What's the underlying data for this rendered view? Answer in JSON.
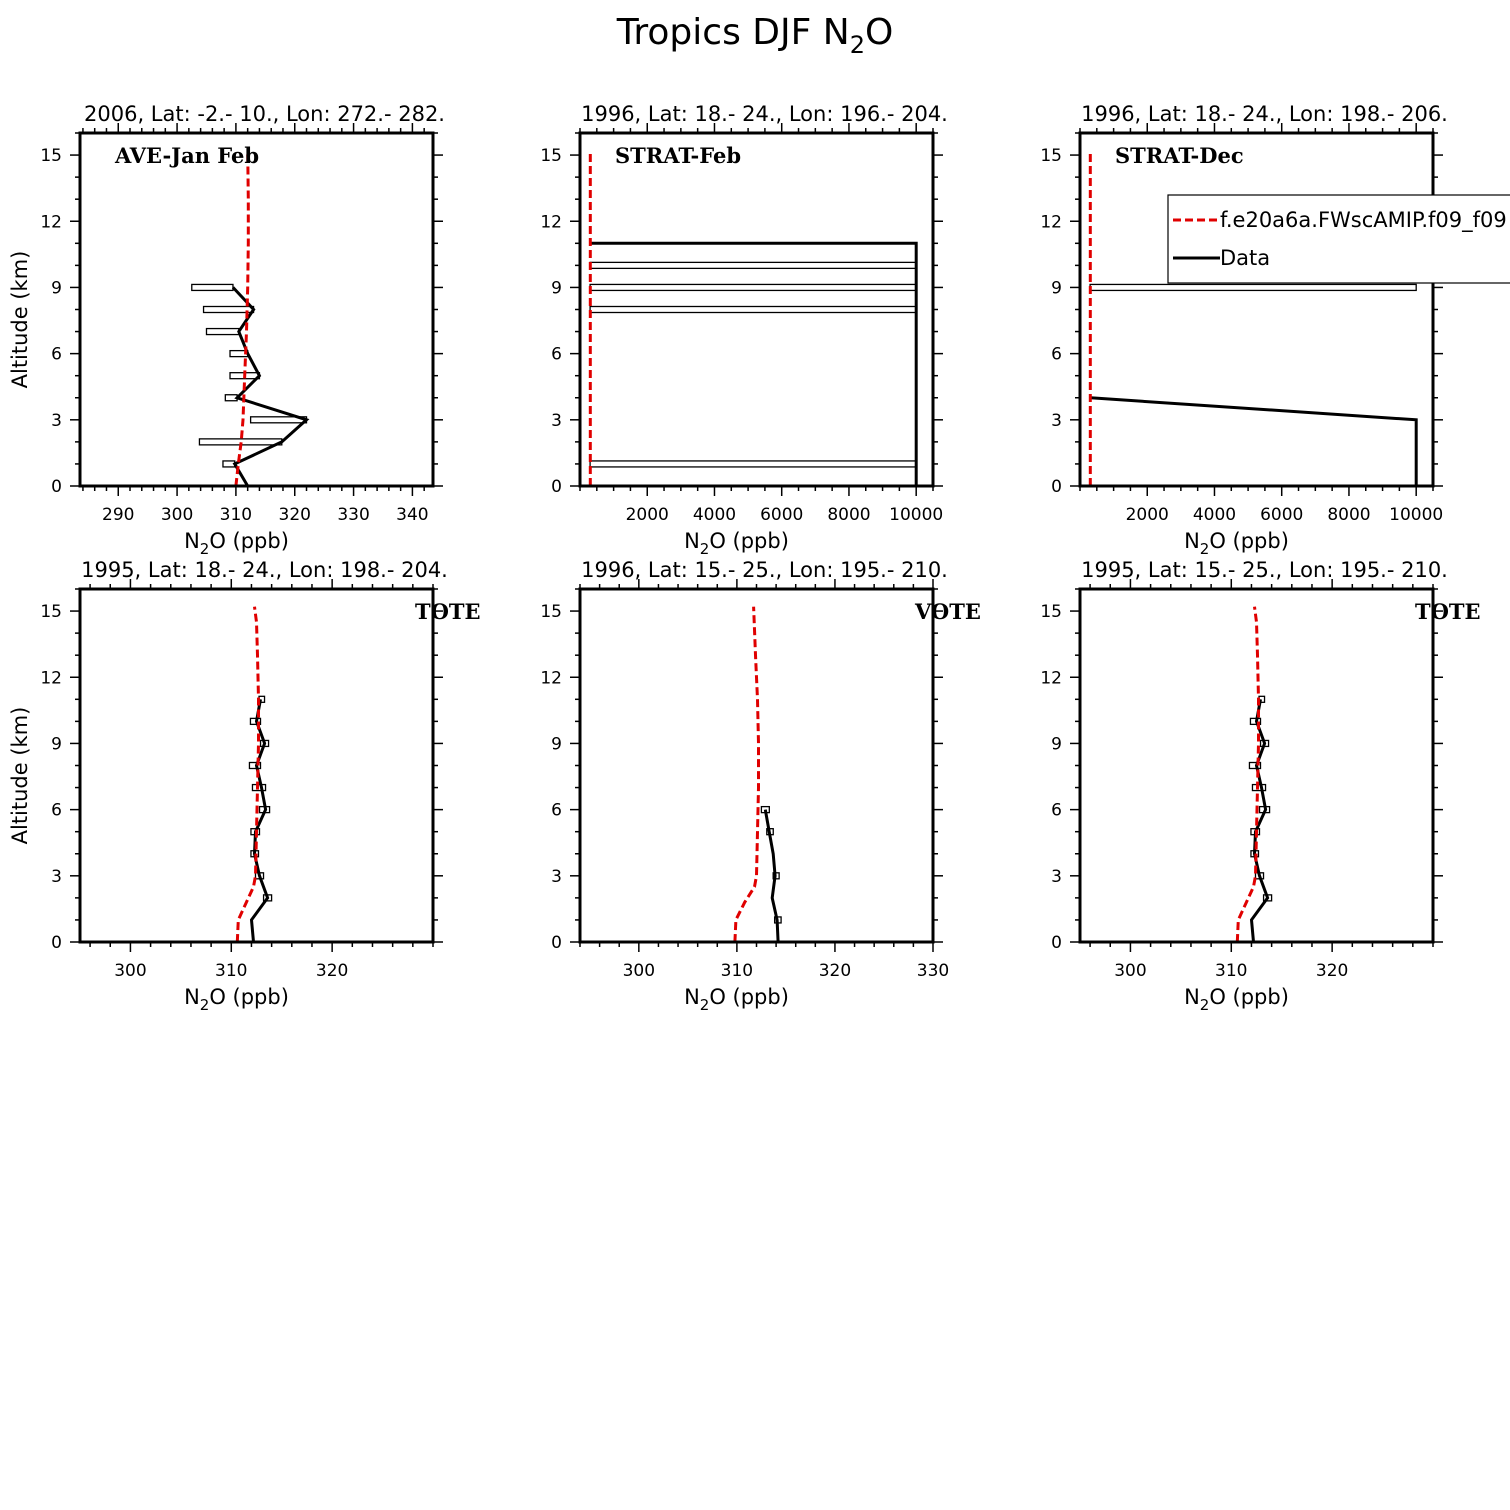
{
  "figure": {
    "title": "Tropics DJF N",
    "title_sub": "2",
    "title_tail": "O"
  },
  "colors": {
    "model": "#e00000",
    "data": "#000000"
  },
  "legend": {
    "model_label": "f.e20a6a.FWscAMIP.f09_f09",
    "data_label": "Data"
  },
  "chart_data": [
    {
      "type": "line",
      "title": "2006, Lat: -2.- 10., Lon: 272.- 282.",
      "label": "AVE-Jan Feb",
      "xlabel": "N2O (ppb)",
      "ylabel": "Altitude (km)",
      "xlim": [
        283.5,
        343.5
      ],
      "ylim": [
        0,
        16
      ],
      "xticks": [
        290,
        300,
        310,
        320,
        330,
        340
      ],
      "yticks": [
        0,
        3,
        6,
        9,
        12,
        15
      ],
      "model": {
        "name": "f.e20a6a.FWscAMIP.f09_f09",
        "x": [
          310.0,
          310.4,
          310.9,
          311.2,
          311.5,
          311.8,
          312.0,
          312.1,
          312.1,
          312.0
        ],
        "y": [
          0,
          1,
          2,
          3,
          5,
          7,
          9,
          11,
          13,
          15.2
        ]
      },
      "data": {
        "name": "Data",
        "x": [
          312.0,
          309.8,
          317.8,
          322.0,
          310.2,
          314.0,
          312.0,
          310.5,
          313.0,
          309.5
        ],
        "y": [
          0,
          1,
          2,
          3,
          4,
          5,
          6,
          7,
          8,
          9
        ],
        "err": [
          0,
          2.0,
          14.0,
          9.5,
          2.0,
          5.0,
          3.0,
          5.5,
          8.5,
          7.0
        ]
      }
    },
    {
      "type": "line",
      "title": "1996, Lat: 18.- 24., Lon: 196.- 204.",
      "label": "STRAT-Feb",
      "xlabel": "N2O (ppb)",
      "ylabel": "",
      "xlim": [
        0,
        10500
      ],
      "ylim": [
        0,
        16
      ],
      "xticks": [
        2000,
        4000,
        6000,
        8000,
        10000
      ],
      "yticks": [
        0,
        3,
        6,
        9,
        12,
        15
      ],
      "model": {
        "name": "f.e20a6a.FWscAMIP.f09_f09",
        "x": [
          305,
          305,
          305,
          305,
          305,
          305
        ],
        "y": [
          0,
          3,
          6,
          9,
          12,
          15.2
        ]
      },
      "data": {
        "name": "Data",
        "x": [
          10000,
          10000,
          10000,
          10000,
          10000,
          10000,
          10000,
          10000,
          10000,
          10000,
          10000,
          10000,
          313
        ],
        "y": [
          0,
          1,
          2,
          3,
          4,
          5,
          6,
          7,
          8,
          9,
          10,
          11,
          11
        ],
        "err": [
          0,
          9700,
          0,
          0,
          0,
          0,
          0,
          0,
          9700,
          9700,
          9700,
          0,
          0
        ]
      }
    },
    {
      "type": "line",
      "title": "1996, Lat: 18.- 24., Lon: 198.- 206.",
      "label": "STRAT-Dec",
      "xlabel": "N2O (ppb)",
      "ylabel": "",
      "xlim": [
        0,
        10500
      ],
      "ylim": [
        0,
        16
      ],
      "xticks": [
        2000,
        4000,
        6000,
        8000,
        10000
      ],
      "yticks": [
        0,
        3,
        6,
        9,
        12,
        15
      ],
      "model": {
        "name": "f.e20a6a.FWscAMIP.f09_f09",
        "x": [
          305,
          305,
          305,
          305,
          305,
          305
        ],
        "y": [
          0,
          3,
          6,
          9,
          12,
          15.2
        ]
      },
      "data": {
        "name": "Data",
        "x": [
          10000,
          10000,
          10000,
          10000,
          313
        ],
        "y": [
          0,
          1,
          2,
          3,
          4
        ],
        "err": [
          0,
          0,
          0,
          0,
          0
        ],
        "extra_bars": [
          {
            "y": 9,
            "x": 10000,
            "err": 9700
          }
        ]
      },
      "legend_here": true
    },
    {
      "type": "line",
      "title": "1995, Lat: 18.- 24., Lon: 198.- 204.",
      "label": "TOTE",
      "xlabel": "N2O (ppb)",
      "ylabel": "Altitude (km)",
      "xlim": [
        295,
        330
      ],
      "ylim": [
        0,
        16
      ],
      "xticks": [
        300,
        310,
        320
      ],
      "yticks": [
        0,
        3,
        6,
        9,
        12,
        15
      ],
      "model": {
        "name": "f.e20a6a.FWscAMIP.f09_f09",
        "x": [
          310.6,
          310.7,
          311.5,
          312.2,
          312.4,
          312.5,
          312.6,
          312.7,
          312.7,
          312.6,
          312.5,
          312.3
        ],
        "y": [
          0,
          1,
          1.8,
          2.5,
          3,
          5,
          7,
          9,
          11,
          13,
          14.5,
          15.2
        ]
      },
      "data": {
        "name": "Data",
        "x": [
          312.2,
          312.0,
          313.6,
          312.8,
          312.3,
          312.4,
          313.4,
          313.0,
          312.5,
          313.3,
          312.5,
          312.9
        ],
        "y": [
          0,
          1,
          2,
          3,
          4,
          5,
          6,
          7,
          8,
          9,
          10,
          11
        ],
        "err": [
          0,
          0,
          0.4,
          0.4,
          0.35,
          0.45,
          0.6,
          0.9,
          0.7,
          0.4,
          0.6,
          0.15
        ]
      }
    },
    {
      "type": "line",
      "title": "1996, Lat: 15.- 25., Lon: 195.- 210.",
      "label": "VOTE",
      "xlabel": "N2O (ppb)",
      "ylabel": "",
      "xlim": [
        294,
        330
      ],
      "ylim": [
        0,
        16
      ],
      "xticks": [
        300,
        310,
        320,
        330
      ],
      "yticks": [
        0,
        3,
        6,
        9,
        12,
        15
      ],
      "model": {
        "name": "f.e20a6a.FWscAMIP.f09_f09",
        "x": [
          309.8,
          309.9,
          310.8,
          311.8,
          312.0,
          312.1,
          312.2,
          312.2,
          312.1,
          311.9,
          311.7
        ],
        "y": [
          0,
          1,
          1.8,
          2.5,
          3,
          5,
          7,
          9,
          11,
          13,
          15.2
        ]
      },
      "data": {
        "name": "Data",
        "x": [
          314.2,
          314.1,
          313.6,
          313.9,
          313.7,
          313.3,
          312.9
        ],
        "y": [
          0,
          1,
          2,
          3,
          4,
          5,
          6
        ],
        "err": [
          0,
          0.25,
          0,
          0.2,
          0,
          0.25,
          0.4
        ]
      }
    },
    {
      "type": "line",
      "title": "1995, Lat: 15.- 25., Lon: 195.- 210.",
      "label": "TOTE",
      "xlabel": "N2O (ppb)",
      "ylabel": "",
      "xlim": [
        295,
        330
      ],
      "ylim": [
        0,
        16
      ],
      "xticks": [
        300,
        310,
        320
      ],
      "yticks": [
        0,
        3,
        6,
        9,
        12,
        15
      ],
      "model": {
        "name": "f.e20a6a.FWscAMIP.f09_f09",
        "x": [
          310.6,
          310.7,
          311.5,
          312.2,
          312.4,
          312.5,
          312.6,
          312.7,
          312.7,
          312.6,
          312.5,
          312.3
        ],
        "y": [
          0,
          1,
          1.8,
          2.5,
          3,
          5,
          7,
          9,
          11,
          13,
          14.5,
          15.2
        ]
      },
      "data": {
        "name": "Data",
        "x": [
          312.2,
          312.0,
          313.6,
          312.8,
          312.3,
          312.4,
          313.4,
          313.0,
          312.5,
          313.3,
          312.5,
          312.9
        ],
        "y": [
          0,
          1,
          2,
          3,
          4,
          5,
          6,
          7,
          8,
          9,
          10,
          11
        ],
        "err": [
          0,
          0,
          0.4,
          0.4,
          0.35,
          0.45,
          0.6,
          0.9,
          0.7,
          0.4,
          0.6,
          0.15
        ]
      }
    }
  ]
}
